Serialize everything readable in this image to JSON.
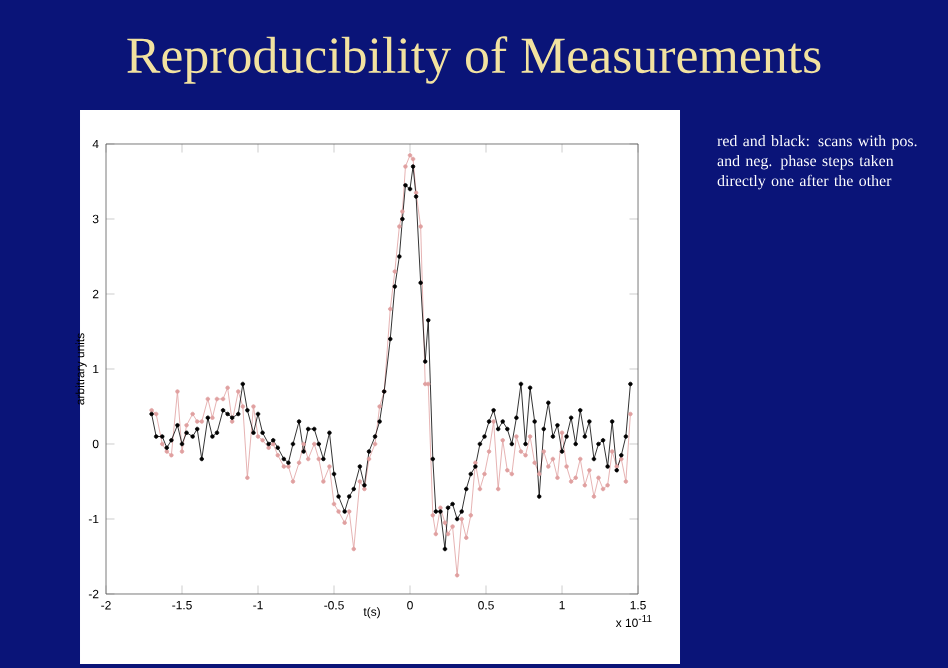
{
  "chart_data": {
    "type": "line",
    "title": "Reproducibility of Measurements",
    "xlabel": "t(s)",
    "ylabel": "arbitrary units",
    "annotations": [
      "red and black: scans with pos. and neg. phase steps taken directly one after the other",
      "x 10$^{-11}$"
    ],
    "x": [
      -1.7,
      -1.67,
      -1.63,
      -1.6,
      -1.57,
      -1.53,
      -1.5,
      -1.47,
      -1.43,
      -1.4,
      -1.37,
      -1.33,
      -1.3,
      -1.27,
      -1.23,
      -1.2,
      -1.17,
      -1.13,
      -1.1,
      -1.07,
      -1.03,
      -1.0,
      -0.97,
      -0.93,
      -0.9,
      -0.87,
      -0.83,
      -0.8,
      -0.77,
      -0.73,
      -0.7,
      -0.67,
      -0.63,
      -0.6,
      -0.57,
      -0.53,
      -0.5,
      -0.47,
      -0.43,
      -0.4,
      -0.37,
      -0.33,
      -0.3,
      -0.27,
      -0.23,
      -0.2,
      -0.17,
      -0.13,
      -0.1,
      -0.07,
      -0.05,
      -0.03,
      0.0,
      0.02,
      0.04,
      0.07,
      0.1,
      0.12,
      0.15,
      0.17,
      0.2,
      0.23,
      0.25,
      0.28,
      0.31,
      0.34,
      0.37,
      0.4,
      0.43,
      0.46,
      0.49,
      0.52,
      0.55,
      0.58,
      0.61,
      0.64,
      0.67,
      0.7,
      0.73,
      0.76,
      0.79,
      0.82,
      0.85,
      0.88,
      0.91,
      0.94,
      0.97,
      1.0,
      1.03,
      1.06,
      1.09,
      1.12,
      1.15,
      1.18,
      1.21,
      1.24,
      1.27,
      1.3,
      1.33,
      1.36,
      1.39,
      1.42,
      1.45
    ],
    "series": [
      {
        "color": "#e0a0a0",
        "values": [
          0.45,
          0.4,
          0.0,
          -0.1,
          -0.15,
          0.7,
          -0.1,
          0.25,
          0.4,
          0.3,
          0.3,
          0.6,
          0.35,
          0.6,
          0.6,
          0.75,
          0.3,
          0.7,
          0.5,
          -0.45,
          0.5,
          0.1,
          0.05,
          -0.05,
          0.0,
          -0.15,
          -0.3,
          -0.3,
          -0.5,
          -0.25,
          0.0,
          -0.2,
          0.0,
          -0.2,
          -0.5,
          -0.3,
          -0.8,
          -0.9,
          -1.05,
          -0.9,
          -1.4,
          -0.5,
          -0.6,
          -0.2,
          0.0,
          0.5,
          0.7,
          1.8,
          2.3,
          2.9,
          3.1,
          3.7,
          3.85,
          3.8,
          3.35,
          2.9,
          0.8,
          0.8,
          -0.95,
          -1.2,
          -0.85,
          -1.05,
          -1.2,
          -1.1,
          -1.75,
          -1.0,
          -1.25,
          -0.95,
          -0.25,
          -0.6,
          -0.4,
          -0.1,
          0.3,
          -0.6,
          0.05,
          -0.35,
          -0.4,
          0.1,
          -0.1,
          -0.15,
          0.1,
          -0.25,
          -0.4,
          -0.1,
          -0.3,
          -0.2,
          -0.45,
          0.15,
          -0.3,
          -0.5,
          -0.45,
          -0.2,
          -0.55,
          -0.35,
          -0.7,
          -0.45,
          -0.6,
          -0.55,
          -0.1,
          -0.3,
          -0.2,
          -0.5,
          0.4
        ]
      },
      {
        "color": "#000000",
        "values": [
          0.4,
          0.1,
          0.1,
          -0.05,
          0.05,
          0.25,
          0.0,
          0.15,
          0.1,
          0.2,
          -0.2,
          0.35,
          0.1,
          0.15,
          0.45,
          0.4,
          0.35,
          0.4,
          0.8,
          0.45,
          0.15,
          0.4,
          0.15,
          0.0,
          0.05,
          -0.05,
          -0.2,
          -0.25,
          0.0,
          0.3,
          -0.1,
          0.2,
          0.2,
          0.0,
          -0.2,
          0.15,
          -0.4,
          -0.7,
          -0.9,
          -0.7,
          -0.6,
          -0.3,
          -0.55,
          -0.1,
          0.1,
          0.3,
          0.7,
          1.4,
          2.1,
          2.5,
          3.0,
          3.45,
          3.4,
          3.7,
          3.3,
          2.15,
          1.1,
          1.65,
          -0.2,
          -0.9,
          -0.9,
          -1.4,
          -0.85,
          -0.8,
          -1.0,
          -0.9,
          -0.6,
          -0.4,
          -0.3,
          0.0,
          0.1,
          0.3,
          0.45,
          0.2,
          0.3,
          0.2,
          0.0,
          0.35,
          0.8,
          0.0,
          0.75,
          0.3,
          -0.7,
          0.2,
          0.55,
          0.1,
          0.25,
          -0.1,
          0.1,
          0.35,
          0.0,
          0.45,
          0.1,
          0.3,
          -0.2,
          0.0,
          0.05,
          -0.3,
          0.3,
          -0.35,
          -0.15,
          0.1,
          0.8
        ]
      }
    ],
    "xlim": [
      -2,
      1.5
    ],
    "xticks": [
      -2,
      -1.5,
      -1,
      -0.5,
      0,
      0.5,
      1,
      1.5
    ],
    "ylim": [
      -2,
      4
    ],
    "yticks": [
      -2,
      -1,
      0,
      1,
      2,
      3,
      4
    ],
    "marker": "circle",
    "line_style": "solid",
    "grid": false,
    "legend": false
  }
}
